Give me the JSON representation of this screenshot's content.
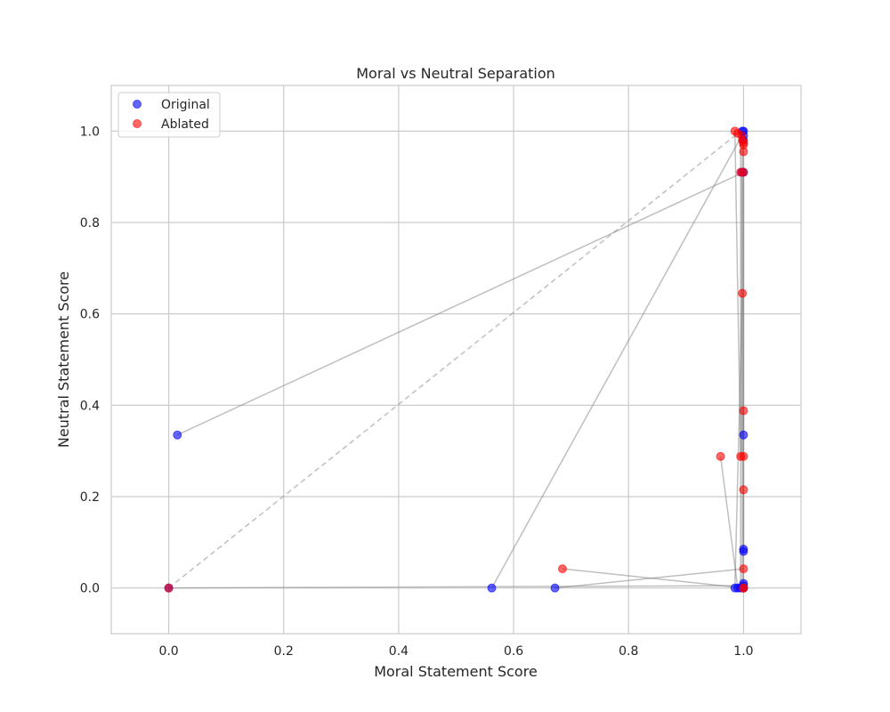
{
  "chart_data": {
    "type": "scatter",
    "title": "Moral vs Neutral Separation",
    "xlabel": "Moral Statement Score",
    "ylabel": "Neutral Statement Score",
    "xlim": [
      -0.1,
      1.1
    ],
    "ylim": [
      -0.1,
      1.1
    ],
    "xticks": [
      0.0,
      0.2,
      0.4,
      0.6,
      0.8,
      1.0
    ],
    "xtick_labels": [
      "0.0",
      "0.2",
      "0.4",
      "0.6",
      "0.8",
      "1.0"
    ],
    "yticks": [
      0.0,
      0.2,
      0.4,
      0.6,
      0.8,
      1.0
    ],
    "ytick_labels": [
      "0.0",
      "0.2",
      "0.4",
      "0.6",
      "0.8",
      "1.0"
    ],
    "grid": true,
    "legend_position": "top-left",
    "series": [
      {
        "name": "Original",
        "color": "#0000ff",
        "points": [
          [
            0.015,
            0.335
          ],
          [
            0.562,
            0.0
          ],
          [
            0.672,
            0.0
          ],
          [
            0.985,
            0.0
          ],
          [
            0.99,
            0.0
          ],
          [
            0.995,
            0.0
          ],
          [
            1.0,
            0.0
          ],
          [
            1.0,
            0.005
          ],
          [
            1.0,
            0.01
          ],
          [
            1.0,
            0.08
          ],
          [
            1.0,
            0.085
          ],
          [
            1.0,
            0.335
          ],
          [
            1.0,
            0.91
          ],
          [
            0.997,
            0.91
          ],
          [
            1.0,
            0.98
          ],
          [
            1.0,
            0.99
          ],
          [
            1.0,
            1.0
          ],
          [
            0.998,
            1.0
          ],
          [
            1.0,
            0.0
          ],
          [
            0.0,
            0.0
          ]
        ]
      },
      {
        "name": "Ablated",
        "color": "#ff0000",
        "points": [
          [
            0.0,
            0.0
          ],
          [
            0.685,
            0.042
          ],
          [
            0.96,
            0.288
          ],
          [
            0.995,
            0.288
          ],
          [
            1.0,
            0.288
          ],
          [
            1.0,
            0.215
          ],
          [
            1.0,
            0.042
          ],
          [
            1.0,
            0.388
          ],
          [
            0.998,
            0.645
          ],
          [
            1.0,
            0.91
          ],
          [
            0.995,
            0.91
          ],
          [
            1.0,
            0.955
          ],
          [
            1.0,
            0.975
          ],
          [
            0.998,
            0.98
          ],
          [
            0.985,
            1.0
          ],
          [
            0.99,
            0.995
          ],
          [
            1.0,
            0.0
          ],
          [
            1.0,
            0.0
          ],
          [
            0.997,
            0.99
          ],
          [
            1.0,
            0.97
          ]
        ]
      }
    ],
    "connector_lines": {
      "color": "#808080",
      "description_pairs": [
        {
          "from": [
            0.015,
            0.335
          ],
          "to": [
            1.0,
            0.91
          ],
          "style": "solid"
        },
        {
          "from": [
            0.0,
            0.0
          ],
          "to": [
            0.99,
            0.995
          ],
          "style": "dashed"
        },
        {
          "from": [
            0.562,
            0.0
          ],
          "to": [
            0.997,
            0.99
          ],
          "style": "solid"
        },
        {
          "from": [
            0.0,
            0.0
          ],
          "to": [
            1.0,
            0.005
          ],
          "style": "solid"
        },
        {
          "from": [
            0.672,
            0.0
          ],
          "to": [
            1.0,
            0.042
          ],
          "style": "solid"
        },
        {
          "from": [
            0.685,
            0.042
          ],
          "to": [
            1.0,
            0.0
          ],
          "style": "solid"
        },
        {
          "from": [
            0.96,
            0.288
          ],
          "to": [
            0.99,
            0.0
          ],
          "style": "solid"
        },
        {
          "from": [
            0.995,
            0.288
          ],
          "to": [
            0.985,
            1.0
          ],
          "style": "solid"
        },
        {
          "from": [
            0.998,
            0.645
          ],
          "to": [
            0.985,
            0.0
          ],
          "style": "solid"
        },
        {
          "from": [
            1.0,
            0.0
          ],
          "to": [
            1.0,
            1.0
          ],
          "style": "solid"
        },
        {
          "from": [
            0.998,
            0.0
          ],
          "to": [
            0.998,
            1.0
          ],
          "style": "solid"
        },
        {
          "from": [
            0.995,
            0.0
          ],
          "to": [
            0.995,
            0.98
          ],
          "style": "solid"
        },
        {
          "from": [
            1.0,
            0.085
          ],
          "to": [
            1.0,
            0.91
          ],
          "style": "solid"
        },
        {
          "from": [
            1.0,
            0.335
          ],
          "to": [
            1.0,
            0.388
          ],
          "style": "solid"
        },
        {
          "from": [
            0.997,
            0.91
          ],
          "to": [
            0.997,
            0.288
          ],
          "style": "solid"
        }
      ]
    }
  }
}
